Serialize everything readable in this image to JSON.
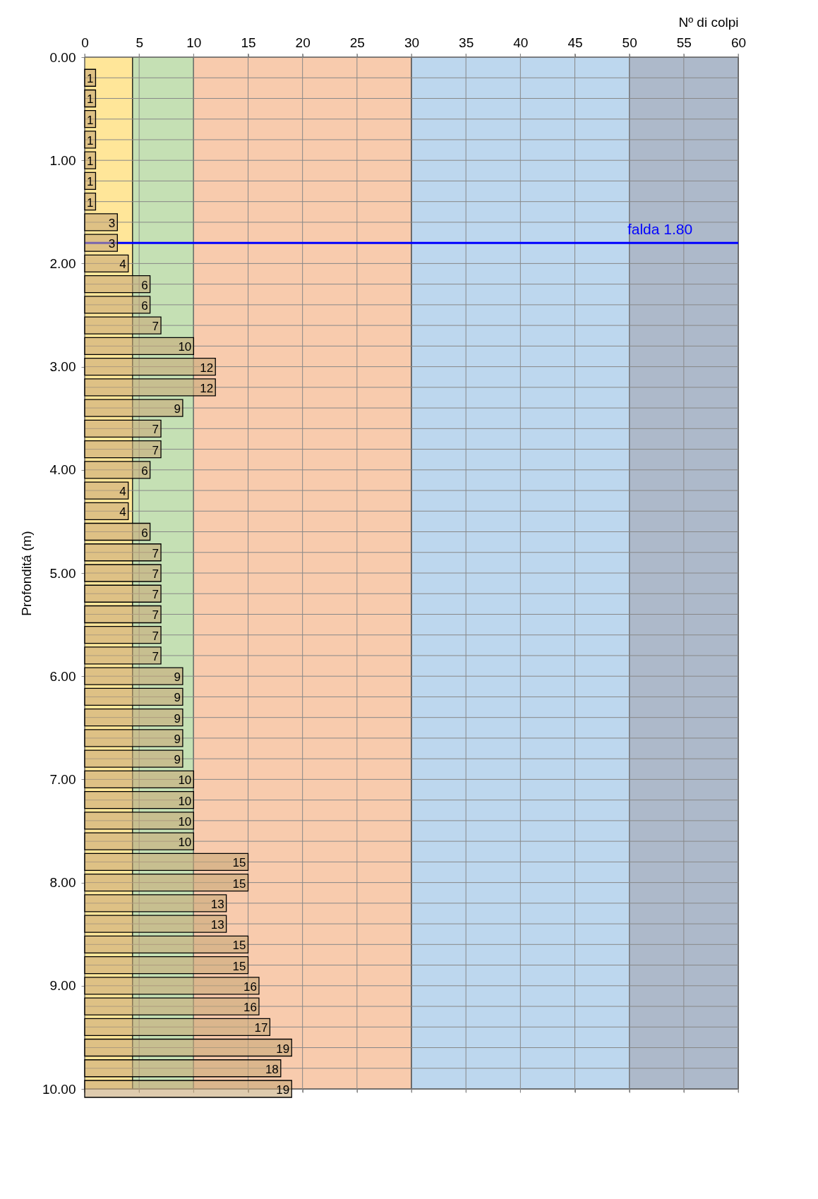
{
  "chart_data": {
    "type": "bar",
    "orientation": "horizontal",
    "xlabel": "Nº di colpi",
    "ylabel": "Profonditá (m)",
    "x": [
      0.2,
      0.4,
      0.6,
      0.8,
      1.0,
      1.2,
      1.4,
      1.6,
      1.8,
      2.0,
      2.2,
      2.4,
      2.6,
      2.8,
      3.0,
      3.2,
      3.4,
      3.6,
      3.8,
      4.0,
      4.2,
      4.4,
      4.6,
      4.8,
      5.0,
      5.2,
      5.4,
      5.6,
      5.8,
      6.0,
      6.2,
      6.4,
      6.6,
      6.8,
      7.0,
      7.2,
      7.4,
      7.6,
      7.8,
      8.0,
      8.2,
      8.4,
      8.6,
      8.8,
      9.0,
      9.2,
      9.4,
      9.6,
      9.8,
      10.0
    ],
    "values": [
      1,
      1,
      1,
      1,
      1,
      1,
      1,
      3,
      3,
      4,
      6,
      6,
      7,
      10,
      12,
      12,
      9,
      7,
      7,
      6,
      4,
      4,
      6,
      7,
      7,
      7,
      7,
      7,
      7,
      9,
      9,
      9,
      9,
      9,
      10,
      10,
      10,
      10,
      15,
      15,
      13,
      13,
      15,
      15,
      16,
      16,
      17,
      19,
      18,
      19
    ],
    "color": "#c8a878",
    "data_labels": true,
    "xlim": [
      0,
      60
    ],
    "xticks": [
      0,
      5,
      10,
      15,
      20,
      25,
      30,
      35,
      40,
      45,
      50,
      55,
      60
    ],
    "ylim": [
      10,
      0
    ],
    "yticks": [
      {
        "value": 0,
        "label": "0.00"
      },
      {
        "value": 0.2,
        "label": null
      },
      {
        "value": 0.4,
        "label": null
      },
      {
        "value": 0.6,
        "label": null
      },
      {
        "value": 0.8,
        "label": null
      },
      {
        "value": 1,
        "label": "1.00"
      },
      {
        "value": 1.2,
        "label": null
      },
      {
        "value": 1.4,
        "label": null
      },
      {
        "value": 1.6,
        "label": null
      },
      {
        "value": 1.8,
        "label": null
      },
      {
        "value": 2,
        "label": "2.00"
      },
      {
        "value": 2.2,
        "label": null
      },
      {
        "value": 2.4,
        "label": null
      },
      {
        "value": 2.6,
        "label": null
      },
      {
        "value": 2.8,
        "label": null
      },
      {
        "value": 3,
        "label": "3.00"
      },
      {
        "value": 3.2,
        "label": null
      },
      {
        "value": 3.4,
        "label": null
      },
      {
        "value": 3.6,
        "label": null
      },
      {
        "value": 3.8,
        "label": null
      },
      {
        "value": 4,
        "label": "4.00"
      },
      {
        "value": 4.2,
        "label": null
      },
      {
        "value": 4.4,
        "label": null
      },
      {
        "value": 4.6,
        "label": null
      },
      {
        "value": 4.8,
        "label": null
      },
      {
        "value": 5,
        "label": "5.00"
      },
      {
        "value": 5.2,
        "label": null
      },
      {
        "value": 5.4,
        "label": null
      },
      {
        "value": 5.6,
        "label": null
      },
      {
        "value": 5.8,
        "label": null
      },
      {
        "value": 6,
        "label": "6.00"
      },
      {
        "value": 6.2,
        "label": null
      },
      {
        "value": 6.4,
        "label": null
      },
      {
        "value": 6.6,
        "label": null
      },
      {
        "value": 6.8,
        "label": null
      },
      {
        "value": 7,
        "label": "7.00"
      },
      {
        "value": 7.2,
        "label": null
      },
      {
        "value": 7.4,
        "label": null
      },
      {
        "value": 7.6,
        "label": null
      },
      {
        "value": 7.8,
        "label": null
      },
      {
        "value": 8,
        "label": "8.00"
      },
      {
        "value": 8.2,
        "label": null
      },
      {
        "value": 8.4,
        "label": null
      },
      {
        "value": 8.6,
        "label": null
      },
      {
        "value": 8.8,
        "label": null
      },
      {
        "value": 9,
        "label": "9.00"
      },
      {
        "value": 9.2,
        "label": null
      },
      {
        "value": 9.4,
        "label": null
      },
      {
        "value": 9.6,
        "label": null
      },
      {
        "value": 9.8,
        "label": null
      },
      {
        "value": 10,
        "label": "10.00"
      }
    ],
    "grid": true,
    "bands": [
      {
        "axis": "x",
        "from": 0,
        "to": 4.4,
        "color": "#ffe699"
      },
      {
        "axis": "x",
        "from": 4.4,
        "to": 10,
        "color": "#c5e0b4"
      },
      {
        "axis": "x",
        "from": 10,
        "to": 30,
        "color": "#f8cbad"
      },
      {
        "axis": "x",
        "from": 30,
        "to": 50,
        "color": "#bdd7ee"
      },
      {
        "axis": "x",
        "from": 50,
        "to": 60,
        "color": "#adb9ca"
      }
    ],
    "ref_lines": [
      {
        "axis": "y",
        "value": 1.8,
        "label": "falda 1.80",
        "color": "#0000ff"
      }
    ]
  }
}
